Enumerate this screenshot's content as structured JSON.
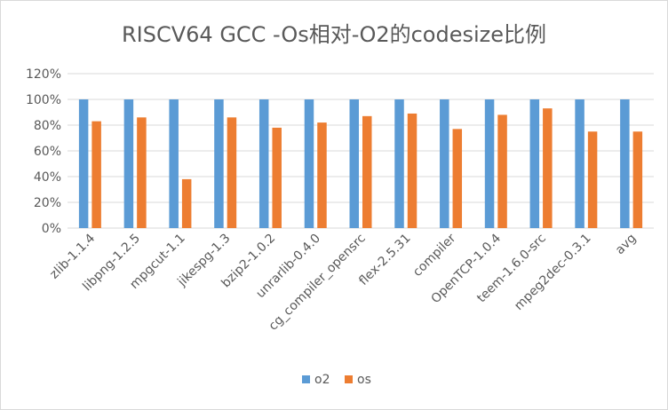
{
  "chart_data": {
    "type": "bar",
    "title": "RISCV64 GCC -Os相对-O2的codesize比例",
    "categories": [
      "zlib-1.1.4",
      "libpng-1.2.5",
      "mpgcut-1.1",
      "jikespg-1.3",
      "bzip2-1.0.2",
      "unrarlib-0.4.0",
      "cg_compiler_opensrc",
      "flex-2.5.31",
      "compiler",
      "OpenTCP-1.0.4",
      "teem-1.6.0-src",
      "mpeg2dec-0.3.1",
      "avg"
    ],
    "series": [
      {
        "name": "o2",
        "color": "#5b9bd5",
        "values": [
          100,
          100,
          100,
          100,
          100,
          100,
          100,
          100,
          100,
          100,
          100,
          100,
          100
        ]
      },
      {
        "name": "os",
        "color": "#ed7d31",
        "values": [
          83,
          86,
          38,
          86,
          78,
          82,
          87,
          89,
          77,
          88,
          93,
          75,
          75
        ]
      }
    ],
    "ylim": [
      0,
      120
    ],
    "yticks": [
      0,
      20,
      40,
      60,
      80,
      100,
      120
    ],
    "ytick_labels": [
      "0%",
      "20%",
      "40%",
      "60%",
      "80%",
      "100%",
      "120%"
    ],
    "xlabel": "",
    "ylabel": "",
    "grid": true,
    "legend_position": "bottom"
  }
}
